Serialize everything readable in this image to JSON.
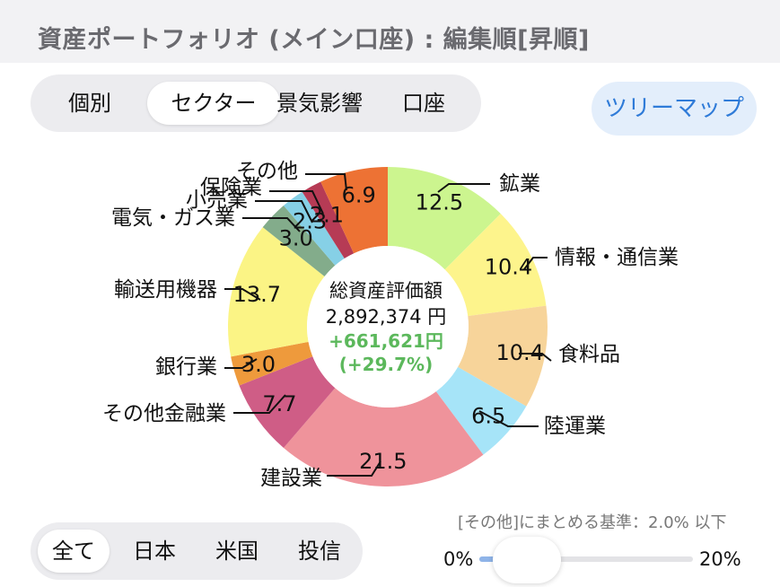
{
  "header": {
    "title": "資産ポートフォリオ (メイン口座) : 編集順[昇順]"
  },
  "view_tabs": [
    {
      "label": "個別",
      "selected": false
    },
    {
      "label": "セクター",
      "selected": true
    },
    {
      "label": "景気影響",
      "selected": false
    },
    {
      "label": "口座",
      "selected": false
    }
  ],
  "treemap_button": {
    "label": "ツリーマップ"
  },
  "summary": {
    "title": "総資産評価額",
    "total": "2,892,374 円",
    "gain": "+661,621円",
    "gain_pct": "(+29.7%)"
  },
  "chart_data": {
    "type": "pie",
    "donut": true,
    "slices": [
      {
        "name": "鉱業",
        "value": 12.5,
        "color": "#ccf58f"
      },
      {
        "name": "情報・通信業",
        "value": 10.4,
        "color": "#fdf48c"
      },
      {
        "name": "食料品",
        "value": 10.4,
        "color": "#f7d49a"
      },
      {
        "name": "陸運業",
        "value": 6.5,
        "color": "#a6e4f8"
      },
      {
        "name": "建設業",
        "value": 21.5,
        "color": "#ef939b"
      },
      {
        "name": "その他金融業",
        "value": 7.7,
        "color": "#cf5d86"
      },
      {
        "name": "銀行業",
        "value": 3.0,
        "color": "#ee9a3c"
      },
      {
        "name": "輸送用機器",
        "value": 13.7,
        "color": "#fbf485"
      },
      {
        "name": "電気・ガス業",
        "value": 3.0,
        "color": "#83ac8b"
      },
      {
        "name": "小売業",
        "value": 2.3,
        "color": "#86d0e6"
      },
      {
        "name": "保険業",
        "value": 2.1,
        "color": "#b63b55"
      },
      {
        "name": "その他",
        "value": 6.9,
        "color": "#ed7234"
      }
    ]
  },
  "region_tabs": [
    {
      "label": "全て",
      "selected": true
    },
    {
      "label": "日本",
      "selected": false
    },
    {
      "label": "米国",
      "selected": false
    },
    {
      "label": "投信",
      "selected": false
    }
  ],
  "threshold": {
    "label": "[その他]にまとめる基準：2.0% 以下",
    "min_label": "0%",
    "max_label": "20%",
    "value_pct": 2.0
  }
}
